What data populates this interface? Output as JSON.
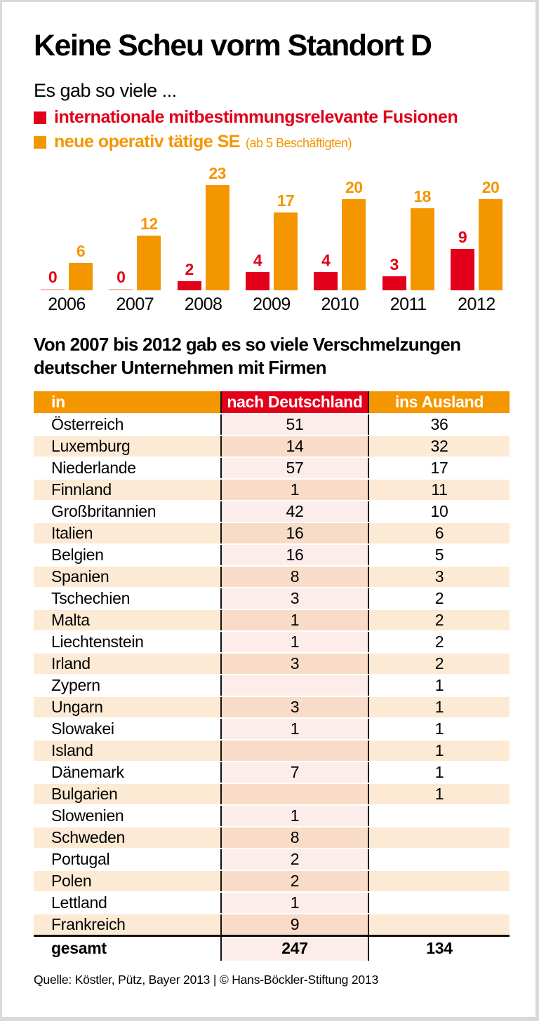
{
  "header": {
    "title": "Keine Scheu vorm Standort D",
    "subtitle": "Es gab so viele ..."
  },
  "legend": {
    "items": [
      {
        "id": "fusionen",
        "label": "internationale mitbestimmungsrelevante Fusionen",
        "note": "",
        "color": "#e2001a"
      },
      {
        "id": "se",
        "label": "neue operativ tätige SE",
        "note": "(ab 5 Beschäftigten)",
        "color": "#f49600"
      }
    ]
  },
  "chart_data": {
    "type": "bar",
    "categories": [
      "2006",
      "2007",
      "2008",
      "2009",
      "2010",
      "2011",
      "2012"
    ],
    "series": [
      {
        "name": "internationale mitbestimmungsrelevante Fusionen",
        "color": "#e2001a",
        "values": [
          0,
          0,
          2,
          4,
          4,
          3,
          9
        ]
      },
      {
        "name": "neue operativ tätige SE (ab 5 Beschäftigten)",
        "color": "#f49600",
        "values": [
          6,
          12,
          23,
          17,
          20,
          18,
          20
        ]
      }
    ],
    "ylim": [
      0,
      23
    ],
    "grid": false,
    "axes_shown": false,
    "value_labels": true,
    "legend_position": "top"
  },
  "table": {
    "title": "Von 2007 bis 2012 gab es so viele Verschmelzungen deutscher Unternehmen mit Firmen",
    "columns": [
      "in",
      "nach Deutschland",
      "ins Ausland"
    ],
    "rows": [
      [
        "Österreich",
        "51",
        "36"
      ],
      [
        "Luxemburg",
        "14",
        "32"
      ],
      [
        "Niederlande",
        "57",
        "17"
      ],
      [
        "Finnland",
        "1",
        "11"
      ],
      [
        "Großbritannien",
        "42",
        "10"
      ],
      [
        "Italien",
        "16",
        "6"
      ],
      [
        "Belgien",
        "16",
        "5"
      ],
      [
        "Spanien",
        "8",
        "3"
      ],
      [
        "Tschechien",
        "3",
        "2"
      ],
      [
        "Malta",
        "1",
        "2"
      ],
      [
        "Liechtenstein",
        "1",
        "2"
      ],
      [
        "Irland",
        "3",
        "2"
      ],
      [
        "Zypern",
        "",
        "1"
      ],
      [
        "Ungarn",
        "3",
        "1"
      ],
      [
        "Slowakei",
        "1",
        "1"
      ],
      [
        "Island",
        "",
        "1"
      ],
      [
        "Dänemark",
        "7",
        "1"
      ],
      [
        "Bulgarien",
        "",
        "1"
      ],
      [
        "Slowenien",
        "1",
        ""
      ],
      [
        "Schweden",
        "8",
        ""
      ],
      [
        "Portugal",
        "2",
        ""
      ],
      [
        "Polen",
        "2",
        ""
      ],
      [
        "Lettland",
        "1",
        ""
      ],
      [
        "Frankreich",
        "9",
        ""
      ]
    ],
    "total": {
      "label": "gesamt",
      "values": [
        "247",
        "134"
      ]
    }
  },
  "footer": {
    "source": "Quelle: Köstler, Pütz, Bayer 2013 | © Hans-Böckler-Stiftung 2013"
  },
  "colors": {
    "red": "#e2001a",
    "orange": "#f49600",
    "red_zero_bar": "#f6b9aa",
    "row_peach": "#fdead4",
    "mid_on_white": "#fcedeb",
    "mid_on_peach": "#f9dcc7",
    "line_black": "#111111",
    "frame_gray": "#d9d9d9"
  }
}
